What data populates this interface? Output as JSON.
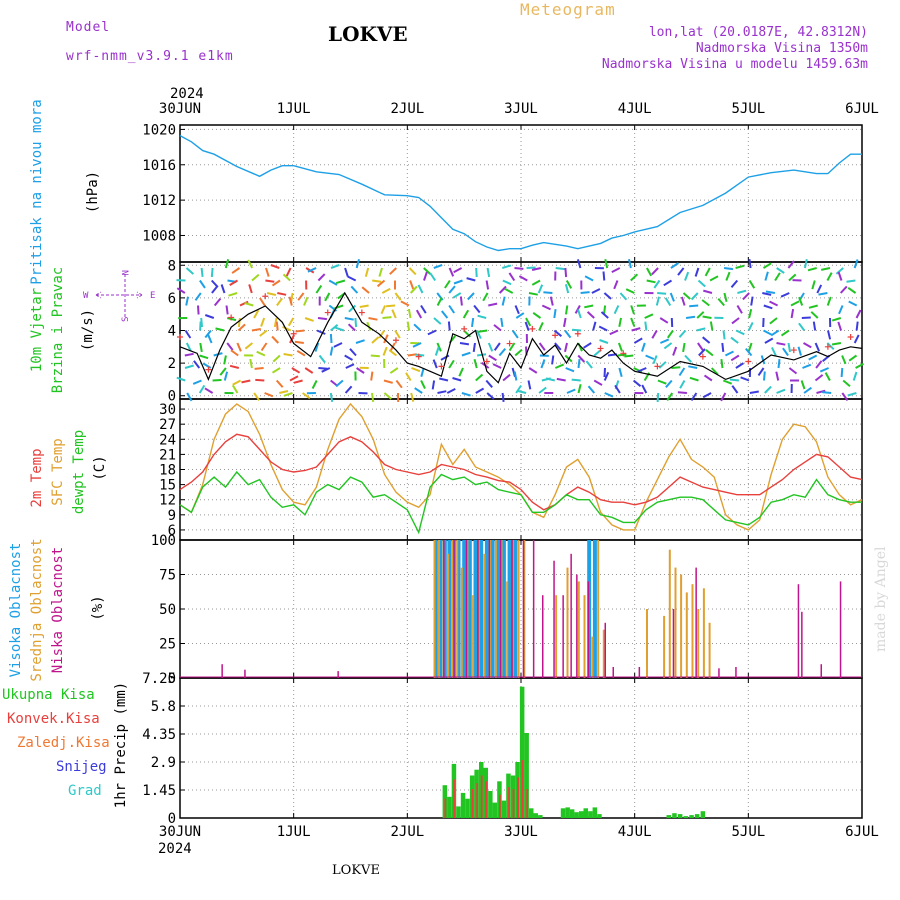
{
  "header": {
    "model_label": "Model",
    "model_name": "wrf-nmm_v3.9.1 e1km",
    "station": "LOKVE",
    "meteogram": "Meteogram",
    "lonlat": "lon,lat (20.0187E, 42.8312N)",
    "altitude": "Nadmorska Visina 1350m",
    "model_altitude": "Nadmorska Visina u modelu 1459.63m",
    "year_top": "2024",
    "year_bottom": "2024",
    "footer_station": "LOKVE",
    "watermark": "made by Angel",
    "colors": {
      "model": "#9932cc",
      "station": "#000000",
      "meteogram": "#e8b860",
      "info": "#9932cc"
    }
  },
  "time_axis": {
    "labels": [
      "30JUN",
      "1JUL",
      "2JUL",
      "3JUL",
      "4JUL",
      "5JUL",
      "6JUL"
    ]
  },
  "panels": {
    "pressure": {
      "ylabel_left": "Pritisak na nivou mora",
      "ylabel_unit": "(hPa)",
      "color": "#1ea0e6"
    },
    "wind": {
      "ylabel_left1": "10m Vjetar",
      "ylabel_left2": "Brzina i Pravac",
      "ylabel_unit": "(m/s)",
      "compass_n": "N",
      "compass_w": "W",
      "compass_e": "E",
      "compass_s": "S"
    },
    "temp": {
      "ylabel_2m": "2m Temp",
      "ylabel_sfc": "SFC Temp",
      "ylabel_dew": "dewpt Temp",
      "ylabel_unit": "(C)",
      "colors": {
        "t2m": "#e8403c",
        "sfc": "#e0a030",
        "dew": "#22c422"
      }
    },
    "cloud": {
      "ylabel_high": "Visoka Oblacnost",
      "ylabel_mid": "Srednja Oblacnost",
      "ylabel_low": "Niska Oblacnost",
      "ylabel_unit": "(%)",
      "colors": {
        "high": "#1ea0e6",
        "mid": "#e0a030",
        "low": "#c0148c"
      }
    },
    "precip": {
      "ylabel_unit": "1hr Precip (mm)",
      "legend": [
        {
          "label": "Ukupna Kisa",
          "color": "#22c422"
        },
        {
          "label": "Konvek.Kisa",
          "color": "#e8403c"
        },
        {
          "label": "Zaledj.Kisa",
          "color": "#f07830"
        },
        {
          "label": "Snijeg",
          "color": "#3c3cdc"
        },
        {
          "label": "Grad",
          "color": "#30c8c8"
        }
      ]
    }
  },
  "chart_data": [
    {
      "type": "line",
      "x_unit": "day offset from 30JUN 2024 00UTC",
      "ylabel": "Pritisak na nivou mora (hPa)",
      "ylim": [
        1005,
        1020.5
      ],
      "yticks": [
        1008,
        1012,
        1016,
        1020
      ],
      "grid": true,
      "series": [
        {
          "name": "Pritisak na nivou mora",
          "x": [
            0,
            0.1,
            0.2,
            0.3,
            0.5,
            0.7,
            0.8,
            0.9,
            1.0,
            1.2,
            1.4,
            1.6,
            1.8,
            2.0,
            2.1,
            2.2,
            2.3,
            2.4,
            2.5,
            2.6,
            2.7,
            2.8,
            2.9,
            3.0,
            3.1,
            3.2,
            3.3,
            3.4,
            3.5,
            3.6,
            3.7,
            3.8,
            3.9,
            4.0,
            4.2,
            4.4,
            4.6,
            4.8,
            5.0,
            5.2,
            5.4,
            5.6,
            5.7,
            5.8,
            5.9,
            6.0
          ],
          "values": [
            1019.3,
            1018.6,
            1017.6,
            1017.2,
            1015.8,
            1014.7,
            1015.4,
            1015.9,
            1015.9,
            1015.2,
            1014.9,
            1013.8,
            1012.6,
            1012.5,
            1012.3,
            1011.3,
            1010.0,
            1008.7,
            1008.2,
            1007.3,
            1006.7,
            1006.3,
            1006.5,
            1006.5,
            1006.9,
            1007.2,
            1007.0,
            1006.8,
            1006.5,
            1006.8,
            1007.1,
            1007.7,
            1008.0,
            1008.4,
            1009.0,
            1010.6,
            1011.4,
            1012.8,
            1014.6,
            1015.1,
            1015.4,
            1015.0,
            1015.0,
            1016.2,
            1017.2,
            1017.2
          ]
        }
      ]
    },
    {
      "type": "line",
      "x_unit": "day offset from 30JUN 2024 00UTC",
      "ylabel": "10m Vjetar Brzina i Pravac (m/s)",
      "ylim": [
        -0.2,
        8.2
      ],
      "yticks": [
        0,
        2,
        4,
        6,
        8
      ],
      "grid": true,
      "series": [
        {
          "name": "10m Vjetar",
          "x": [
            0,
            0.15,
            0.25,
            0.35,
            0.45,
            0.6,
            0.75,
            0.9,
            1.0,
            1.15,
            1.3,
            1.45,
            1.6,
            1.75,
            1.9,
            2.0,
            2.1,
            2.2,
            2.3,
            2.4,
            2.5,
            2.6,
            2.7,
            2.8,
            2.9,
            3.0,
            3.1,
            3.2,
            3.3,
            3.4,
            3.5,
            3.6,
            3.7,
            3.8,
            3.9,
            4.0,
            4.2,
            4.4,
            4.6,
            4.8,
            5.0,
            5.2,
            5.4,
            5.6,
            5.7,
            5.8,
            5.9,
            6.0
          ],
          "values": [
            3.0,
            2.6,
            1.0,
            2.8,
            4.2,
            5.0,
            5.5,
            4.5,
            3.2,
            2.4,
            4.5,
            6.3,
            4.5,
            3.8,
            2.8,
            2.0,
            1.8,
            1.5,
            1.2,
            3.8,
            3.5,
            4.0,
            1.5,
            0.8,
            2.6,
            1.7,
            3.5,
            2.5,
            3.1,
            2.0,
            3.2,
            2.5,
            2.3,
            2.8,
            2.0,
            1.5,
            1.2,
            2.1,
            1.8,
            1.0,
            1.5,
            2.5,
            2.2,
            2.7,
            2.4,
            2.8,
            3.0,
            2.9
          ]
        }
      ]
    },
    {
      "type": "line",
      "x_unit": "day offset from 30JUN 2024 00UTC",
      "ylabel": "Temp (C)",
      "ylim": [
        4,
        32
      ],
      "yticks": [
        6,
        9,
        12,
        15,
        18,
        21,
        24,
        27,
        30
      ],
      "grid": true,
      "series": [
        {
          "name": "2m Temp",
          "x": [
            0,
            0.1,
            0.2,
            0.3,
            0.4,
            0.5,
            0.6,
            0.7,
            0.8,
            0.9,
            1.0,
            1.1,
            1.2,
            1.3,
            1.4,
            1.5,
            1.6,
            1.7,
            1.8,
            1.9,
            2.0,
            2.1,
            2.2,
            2.3,
            2.4,
            2.5,
            2.6,
            2.7,
            2.8,
            2.9,
            3.0,
            3.1,
            3.2,
            3.3,
            3.4,
            3.5,
            3.6,
            3.7,
            3.8,
            3.9,
            4.0,
            4.1,
            4.2,
            4.3,
            4.4,
            4.5,
            4.6,
            4.7,
            4.8,
            4.9,
            5.0,
            5.1,
            5.2,
            5.3,
            5.4,
            5.5,
            5.6,
            5.7,
            5.8,
            5.9,
            6.0
          ],
          "values": [
            14.0,
            15.5,
            17.5,
            21.0,
            23.5,
            25.0,
            24.5,
            22.0,
            19.5,
            18.0,
            17.5,
            17.8,
            18.5,
            21.0,
            23.5,
            24.5,
            23.5,
            21.5,
            19.0,
            18.0,
            17.5,
            17.0,
            17.5,
            19.0,
            18.5,
            18.0,
            17.0,
            16.5,
            15.8,
            15.5,
            14.0,
            11.5,
            10.0,
            11.0,
            13.0,
            14.5,
            13.5,
            12.0,
            11.5,
            11.5,
            11.0,
            11.5,
            12.5,
            14.5,
            16.5,
            15.5,
            14.5,
            14.0,
            13.5,
            13.0,
            13.0,
            13.0,
            14.5,
            16.0,
            18.0,
            19.5,
            21.0,
            20.5,
            18.5,
            16.5,
            16.0
          ]
        },
        {
          "name": "SFC Temp",
          "x": [
            0,
            0.1,
            0.2,
            0.3,
            0.4,
            0.5,
            0.6,
            0.7,
            0.8,
            0.9,
            1.0,
            1.1,
            1.2,
            1.3,
            1.4,
            1.5,
            1.6,
            1.7,
            1.8,
            1.9,
            2.0,
            2.1,
            2.2,
            2.3,
            2.4,
            2.5,
            2.6,
            2.7,
            2.8,
            2.9,
            3.0,
            3.1,
            3.2,
            3.3,
            3.4,
            3.5,
            3.6,
            3.7,
            3.8,
            3.9,
            4.0,
            4.1,
            4.2,
            4.3,
            4.4,
            4.5,
            4.6,
            4.7,
            4.8,
            4.9,
            5.0,
            5.1,
            5.2,
            5.3,
            5.4,
            5.5,
            5.6,
            5.7,
            5.8,
            5.9,
            6.0
          ],
          "values": [
            11.0,
            9.5,
            15.0,
            24.0,
            29.0,
            31.0,
            29.5,
            25.0,
            19.0,
            14.0,
            11.5,
            11.0,
            14.5,
            22.0,
            28.0,
            31.0,
            28.5,
            24.0,
            17.0,
            13.5,
            11.5,
            10.5,
            13.0,
            23.0,
            19.0,
            22.0,
            18.5,
            17.5,
            16.5,
            15.0,
            13.0,
            9.5,
            8.5,
            13.0,
            18.5,
            20.0,
            16.5,
            9.5,
            7.0,
            6.0,
            6.0,
            11.5,
            16.0,
            20.5,
            24.0,
            20.0,
            18.5,
            16.5,
            9.0,
            7.0,
            6.0,
            8.0,
            17.0,
            24.0,
            27.0,
            26.5,
            23.5,
            16.5,
            13.0,
            11.0,
            12.0
          ]
        },
        {
          "name": "dewpt Temp",
          "x": [
            0,
            0.1,
            0.2,
            0.3,
            0.4,
            0.5,
            0.6,
            0.7,
            0.8,
            0.9,
            1.0,
            1.1,
            1.2,
            1.3,
            1.4,
            1.5,
            1.6,
            1.7,
            1.8,
            1.9,
            2.0,
            2.1,
            2.2,
            2.3,
            2.4,
            2.5,
            2.6,
            2.7,
            2.8,
            2.9,
            3.0,
            3.1,
            3.2,
            3.3,
            3.4,
            3.5,
            3.6,
            3.7,
            3.8,
            3.9,
            4.0,
            4.1,
            4.2,
            4.3,
            4.4,
            4.5,
            4.6,
            4.7,
            4.8,
            4.9,
            5.0,
            5.1,
            5.2,
            5.3,
            5.4,
            5.5,
            5.6,
            5.7,
            5.8,
            5.9,
            6.0
          ],
          "values": [
            11.0,
            9.5,
            14.5,
            16.5,
            14.5,
            17.5,
            15.0,
            16.0,
            12.5,
            10.5,
            11.0,
            9.0,
            13.5,
            15.0,
            14.0,
            16.5,
            15.5,
            12.5,
            13.0,
            11.5,
            10.0,
            5.5,
            14.5,
            17.0,
            16.0,
            16.5,
            15.0,
            15.5,
            14.0,
            13.5,
            13.0,
            9.5,
            9.5,
            11.0,
            13.0,
            12.0,
            12.0,
            9.0,
            8.5,
            7.5,
            7.5,
            10.0,
            11.5,
            12.0,
            12.5,
            12.5,
            12.0,
            10.0,
            8.0,
            7.5,
            7.0,
            8.5,
            11.5,
            12.0,
            13.0,
            12.5,
            16.0,
            13.0,
            12.0,
            11.5,
            11.5
          ]
        }
      ]
    },
    {
      "type": "bar",
      "x_unit": "day offset from 30JUN 2024 00UTC",
      "ylabel": "Oblacnost (%)",
      "ylim": [
        0,
        100
      ],
      "yticks": [
        0,
        25,
        50,
        75,
        100
      ],
      "grid": true,
      "series": [
        {
          "name": "Visoka Oblacnost",
          "x": [
            2.25,
            2.29,
            2.33,
            2.37,
            2.41,
            2.45,
            2.5,
            2.55,
            2.6,
            2.65,
            2.7,
            2.75,
            2.8,
            2.85,
            2.9,
            2.95,
            3.6,
            3.65
          ],
          "values": [
            100,
            100,
            100,
            100,
            100,
            100,
            100,
            100,
            100,
            100,
            100,
            100,
            100,
            100,
            100,
            100,
            100,
            100
          ]
        },
        {
          "name": "Srednja Oblacnost",
          "x": [
            2.23,
            2.27,
            2.31,
            2.35,
            2.39,
            2.43,
            2.47,
            2.52,
            2.57,
            2.62,
            2.67,
            2.72,
            2.77,
            2.82,
            2.87,
            2.92,
            2.97,
            3.02,
            3.3,
            3.4,
            3.5,
            3.55,
            3.62,
            3.67,
            3.72,
            4.1,
            4.25,
            4.3,
            4.35,
            4.4,
            4.45,
            4.5,
            4.55,
            4.6,
            4.65
          ],
          "values": [
            100,
            100,
            100,
            90,
            100,
            100,
            80,
            100,
            60,
            100,
            90,
            100,
            100,
            100,
            70,
            100,
            100,
            100,
            60,
            80,
            70,
            60,
            30,
            100,
            35,
            50,
            45,
            93,
            80,
            75,
            62,
            68,
            50,
            65,
            40
          ]
        },
        {
          "name": "Niska Oblacnost",
          "x": [
            0.38,
            0.58,
            1.4,
            2.33,
            2.42,
            2.53,
            2.63,
            2.73,
            2.83,
            2.93,
            3.03,
            3.12,
            3.2,
            3.3,
            3.38,
            3.45,
            3.5,
            3.6,
            3.75,
            3.82,
            4.05,
            4.35,
            4.55,
            4.75,
            4.9,
            5.45,
            5.48,
            5.65,
            5.82
          ],
          "values": [
            10,
            6,
            5,
            100,
            100,
            100,
            100,
            100,
            100,
            100,
            100,
            100,
            60,
            85,
            60,
            90,
            75,
            70,
            40,
            8,
            8,
            50,
            80,
            7,
            8,
            68,
            48,
            10,
            70
          ]
        }
      ]
    },
    {
      "type": "bar",
      "x_unit": "day offset from 30JUN 2024 00UTC",
      "ylabel": "1hr Precip (mm)",
      "ylim": [
        0,
        7.25
      ],
      "yticks": [
        0,
        1.45,
        2.9,
        4.35,
        5.8,
        7.25
      ],
      "grid": true,
      "series": [
        {
          "name": "Ukupna Kisa",
          "x": [
            2.33,
            2.37,
            2.41,
            2.45,
            2.49,
            2.53,
            2.57,
            2.61,
            2.65,
            2.69,
            2.73,
            2.77,
            2.81,
            2.85,
            2.89,
            2.93,
            2.97,
            3.01,
            3.05,
            3.09,
            3.13,
            3.17,
            3.37,
            3.41,
            3.45,
            3.49,
            3.53,
            3.57,
            3.61,
            3.65,
            3.69,
            4.3,
            4.35,
            4.4,
            4.45,
            4.5,
            4.55,
            4.6
          ],
          "values": [
            1.7,
            1.1,
            2.8,
            0.6,
            1.3,
            1.0,
            2.2,
            2.5,
            2.9,
            2.6,
            1.4,
            0.8,
            1.9,
            0.9,
            2.3,
            2.2,
            2.9,
            6.8,
            4.4,
            0.5,
            0.25,
            0.15,
            0.5,
            0.55,
            0.45,
            0.3,
            0.35,
            0.5,
            0.35,
            0.55,
            0.2,
            0.15,
            0.25,
            0.2,
            0.1,
            0.15,
            0.2,
            0.35
          ]
        },
        {
          "name": "Konvek.Kisa",
          "x": [
            2.33,
            2.41,
            2.57,
            2.61,
            2.65,
            2.69,
            2.81,
            2.89,
            2.93,
            2.97,
            3.01,
            3.05
          ],
          "values": [
            1.0,
            2.0,
            1.5,
            1.8,
            2.2,
            1.9,
            1.2,
            1.6,
            1.5,
            2.1,
            3.0,
            1.5
          ]
        }
      ]
    }
  ]
}
